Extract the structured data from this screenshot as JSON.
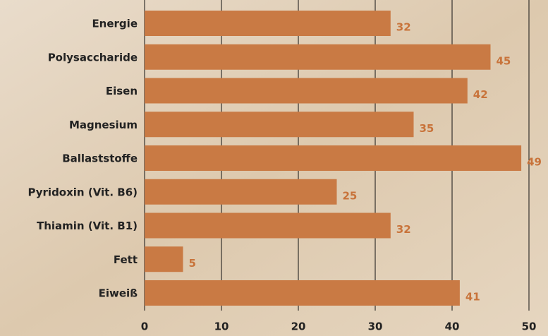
{
  "chart_data": {
    "type": "barh",
    "categories": [
      "Energie",
      "Polysaccharide",
      "Eisen",
      "Magnesium",
      "Ballaststoffe",
      "Pyridoxin (Vit. B6)",
      "Thiamin (Vit. B1)",
      "Fett",
      "Eiweiß"
    ],
    "values": [
      32,
      45,
      42,
      35,
      49,
      25,
      32,
      5,
      41
    ],
    "color": "#c97a44",
    "label_color": "#c8733a",
    "xlim": [
      0,
      50
    ],
    "xticks": [
      0,
      10,
      20,
      30,
      40,
      50
    ],
    "grid": true
  }
}
